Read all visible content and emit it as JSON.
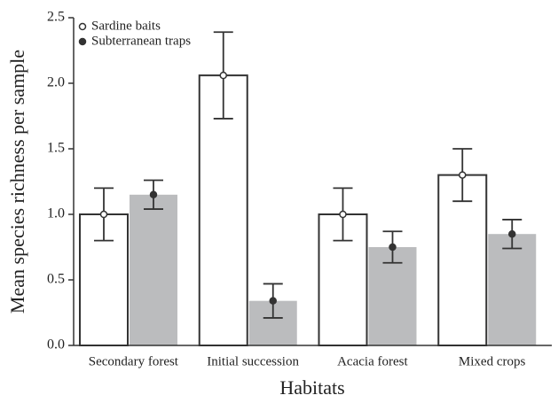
{
  "chart_data": {
    "type": "bar",
    "x_label": "Habitats",
    "y_label": "Mean species richness per sample",
    "categories": [
      "Secondary forest",
      "Initial succession",
      "Acacia forest",
      "Mixed crops"
    ],
    "series": [
      {
        "name": "Sardine baits",
        "color": "#ffffff",
        "values": [
          1.0,
          2.06,
          1.0,
          1.3
        ],
        "errors": [
          0.2,
          0.33,
          0.2,
          0.2
        ]
      },
      {
        "name": "Subterranean traps",
        "color": "#bbbcbe",
        "values": [
          1.15,
          0.34,
          0.75,
          0.85
        ],
        "errors": [
          0.11,
          0.13,
          0.12,
          0.11
        ]
      }
    ],
    "ylim": [
      0,
      2.5
    ],
    "yticks": [
      {
        "value": 0,
        "label": "0.0"
      },
      0.5,
      {
        "value": 1,
        "label": "1.0"
      },
      1.5,
      {
        "value": 2,
        "label": "2.0"
      },
      2.5
    ],
    "legend": "upper left"
  }
}
